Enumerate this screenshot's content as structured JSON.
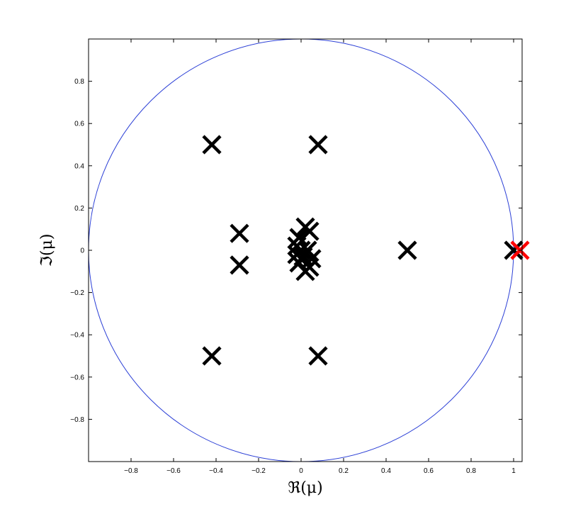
{
  "chart_data": {
    "type": "scatter",
    "xlabel": "ℜ(μ)",
    "ylabel": "ℑ(μ)",
    "xlim": [
      -1,
      1.04
    ],
    "ylim": [
      -1,
      1
    ],
    "x_ticks": [
      -0.8,
      -0.6,
      -0.4,
      -0.2,
      0,
      0.2,
      0.4,
      0.6,
      0.8,
      1
    ],
    "y_ticks": [
      -0.8,
      -0.6,
      -0.4,
      -0.2,
      0,
      0.2,
      0.4,
      0.6,
      0.8
    ],
    "x_tick_labels": [
      "−0.8",
      "−0.6",
      "−0.4",
      "−0.2",
      "0",
      "0.2",
      "0.4",
      "0.6",
      "0.8",
      "1"
    ],
    "y_tick_labels": [
      "−0.8",
      "−0.6",
      "−0.4",
      "−0.2",
      "0",
      "0.2",
      "0.4",
      "0.6",
      "0.8"
    ],
    "grid": false,
    "unit_circle": {
      "center": [
        0,
        0
      ],
      "radius": 1,
      "color": "#2b3fd6"
    },
    "series": [
      {
        "marker": "x",
        "color": "#000000",
        "points": [
          [
            -0.42,
            0.5
          ],
          [
            0.08,
            0.5
          ],
          [
            -0.29,
            0.08
          ],
          [
            -0.29,
            -0.07
          ],
          [
            -0.42,
            -0.5
          ],
          [
            0.08,
            -0.5
          ],
          [
            0.5,
            0.0
          ],
          [
            1.0,
            0.0
          ],
          [
            0.02,
            0.11
          ],
          [
            0.04,
            0.09
          ],
          [
            -0.01,
            0.06
          ],
          [
            -0.02,
            0.02
          ],
          [
            0.0,
            0.0
          ],
          [
            0.03,
            0.0
          ],
          [
            -0.02,
            -0.02
          ],
          [
            0.01,
            -0.03
          ],
          [
            0.05,
            -0.04
          ],
          [
            -0.01,
            -0.06
          ],
          [
            0.04,
            -0.08
          ],
          [
            0.02,
            -0.1
          ]
        ]
      },
      {
        "marker": "x",
        "color": "#ff0000",
        "points": [
          [
            1.03,
            0.0
          ]
        ]
      }
    ]
  }
}
